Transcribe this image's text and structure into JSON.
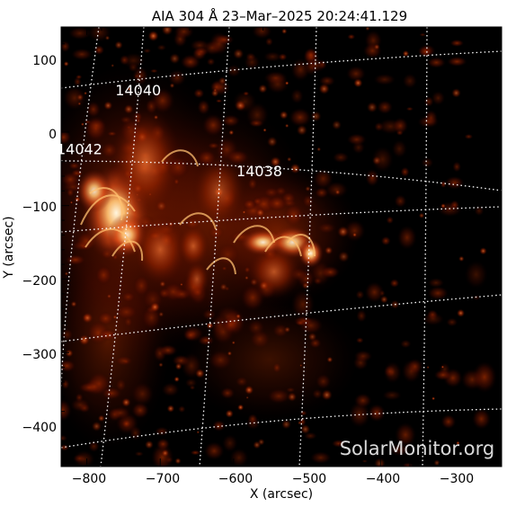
{
  "title": "AIA 304 Å 23–Mar–2025 20:24:41.129",
  "x_axis": {
    "label": "X (arcsec)",
    "ticks": [
      "−800",
      "−700",
      "−600",
      "−500",
      "−400",
      "−300"
    ],
    "range": [
      -835,
      -235
    ]
  },
  "y_axis": {
    "label": "Y (arcsec)",
    "ticks": [
      "100",
      "0",
      "−100",
      "−200",
      "−300",
      "−400"
    ],
    "range": [
      -455,
      143
    ]
  },
  "active_regions": [
    {
      "number": "14040",
      "x": -730,
      "y": 50
    },
    {
      "number": "14042",
      "x": -810,
      "y": -30
    },
    {
      "number": "14038",
      "x": -565,
      "y": -60
    }
  ],
  "watermark": "SolarMonitor.org",
  "colors": {
    "background": "#000000",
    "plasma_dark": "#5a0a00",
    "plasma_mid": "#c43a00",
    "plasma_bright": "#ffb060",
    "plasma_core": "#fff4d8",
    "grid": "#ffffff"
  }
}
